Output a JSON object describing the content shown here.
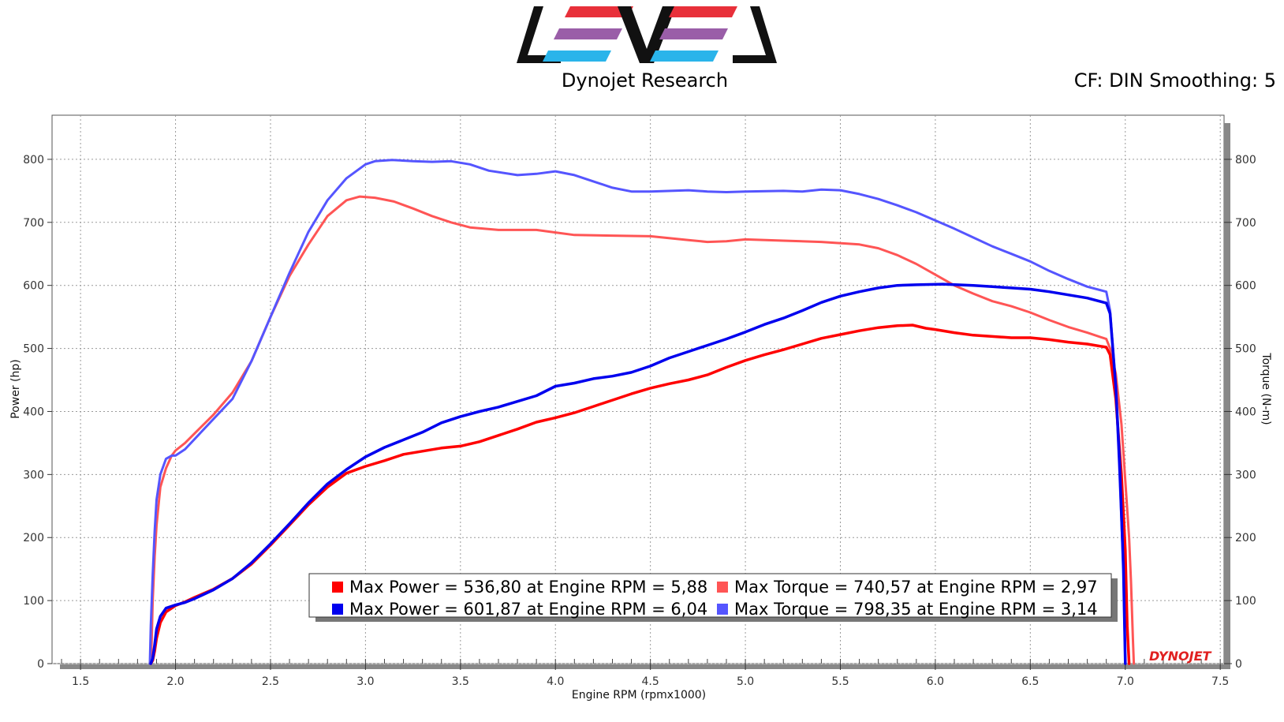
{
  "header": {
    "subtitle": "Dynojet Research",
    "settings": "CF: DIN Smoothing: 5",
    "logo_text": "LEVEL",
    "logo_colors": {
      "dark": "#111111",
      "red": "#e8303a",
      "purple": "#9a5ea8",
      "cyan": "#2ab4ea"
    }
  },
  "chart_data": {
    "type": "line",
    "xlabel": "Engine RPM (rpmx1000)",
    "ylabel_left": "Power (hp)",
    "ylabel_right": "Torque (N-m)",
    "xlim": [
      1.35,
      7.52
    ],
    "ylim": [
      0,
      870
    ],
    "x_ticks": [
      "1.5",
      "2.0",
      "2.5",
      "3.0",
      "3.5",
      "4.0",
      "4.5",
      "5.0",
      "5.5",
      "6.0",
      "6.5",
      "7.0",
      "7.5"
    ],
    "y_ticks_left": [
      "0",
      "100",
      "200",
      "300",
      "400",
      "500",
      "600",
      "700",
      "800"
    ],
    "y_ticks_right": [
      "0",
      "100",
      "200",
      "300",
      "400",
      "500",
      "600",
      "700",
      "800"
    ],
    "grid": true,
    "brand": "DYNOJET",
    "series": [
      {
        "name": "Max Power = 536,80 at Engine RPM = 5,88",
        "color": "#ff0000",
        "width": 3.5,
        "points": [
          [
            1.87,
            0
          ],
          [
            1.88,
            5
          ],
          [
            1.89,
            20
          ],
          [
            1.9,
            40
          ],
          [
            1.92,
            65
          ],
          [
            1.95,
            82
          ],
          [
            2.0,
            92
          ],
          [
            2.05,
            98
          ],
          [
            2.1,
            105
          ],
          [
            2.2,
            118
          ],
          [
            2.3,
            135
          ],
          [
            2.4,
            158
          ],
          [
            2.5,
            188
          ],
          [
            2.6,
            220
          ],
          [
            2.7,
            252
          ],
          [
            2.8,
            280
          ],
          [
            2.9,
            302
          ],
          [
            3.0,
            313
          ],
          [
            3.1,
            322
          ],
          [
            3.2,
            332
          ],
          [
            3.3,
            337
          ],
          [
            3.4,
            342
          ],
          [
            3.5,
            345
          ],
          [
            3.6,
            352
          ],
          [
            3.7,
            362
          ],
          [
            3.8,
            372
          ],
          [
            3.9,
            383
          ],
          [
            4.0,
            390
          ],
          [
            4.1,
            398
          ],
          [
            4.2,
            408
          ],
          [
            4.3,
            418
          ],
          [
            4.4,
            428
          ],
          [
            4.5,
            437
          ],
          [
            4.6,
            444
          ],
          [
            4.7,
            450
          ],
          [
            4.8,
            458
          ],
          [
            4.9,
            470
          ],
          [
            5.0,
            481
          ],
          [
            5.1,
            490
          ],
          [
            5.2,
            498
          ],
          [
            5.3,
            507
          ],
          [
            5.4,
            516
          ],
          [
            5.5,
            522
          ],
          [
            5.6,
            528
          ],
          [
            5.7,
            533
          ],
          [
            5.8,
            536
          ],
          [
            5.88,
            537
          ],
          [
            5.95,
            532
          ],
          [
            6.0,
            530
          ],
          [
            6.1,
            525
          ],
          [
            6.2,
            521
          ],
          [
            6.3,
            519
          ],
          [
            6.4,
            517
          ],
          [
            6.5,
            517
          ],
          [
            6.6,
            514
          ],
          [
            6.7,
            510
          ],
          [
            6.8,
            507
          ],
          [
            6.9,
            502
          ],
          [
            6.92,
            490
          ],
          [
            6.95,
            420
          ],
          [
            6.98,
            300
          ],
          [
            7.0,
            180
          ],
          [
            7.01,
            60
          ],
          [
            7.02,
            0
          ]
        ]
      },
      {
        "name": "Max Power = 601,87 at Engine RPM = 6,04",
        "color": "#0000ee",
        "width": 3.5,
        "points": [
          [
            1.87,
            0
          ],
          [
            1.88,
            8
          ],
          [
            1.89,
            30
          ],
          [
            1.9,
            55
          ],
          [
            1.92,
            75
          ],
          [
            1.95,
            88
          ],
          [
            2.0,
            93
          ],
          [
            2.05,
            97
          ],
          [
            2.1,
            103
          ],
          [
            2.2,
            117
          ],
          [
            2.3,
            135
          ],
          [
            2.4,
            160
          ],
          [
            2.5,
            190
          ],
          [
            2.6,
            222
          ],
          [
            2.7,
            255
          ],
          [
            2.8,
            285
          ],
          [
            2.9,
            308
          ],
          [
            3.0,
            328
          ],
          [
            3.1,
            343
          ],
          [
            3.2,
            355
          ],
          [
            3.3,
            367
          ],
          [
            3.4,
            382
          ],
          [
            3.5,
            392
          ],
          [
            3.6,
            400
          ],
          [
            3.7,
            407
          ],
          [
            3.8,
            416
          ],
          [
            3.9,
            425
          ],
          [
            4.0,
            440
          ],
          [
            4.1,
            445
          ],
          [
            4.2,
            452
          ],
          [
            4.3,
            456
          ],
          [
            4.4,
            462
          ],
          [
            4.5,
            472
          ],
          [
            4.6,
            485
          ],
          [
            4.7,
            495
          ],
          [
            4.8,
            505
          ],
          [
            4.9,
            515
          ],
          [
            5.0,
            526
          ],
          [
            5.1,
            538
          ],
          [
            5.2,
            548
          ],
          [
            5.3,
            560
          ],
          [
            5.4,
            573
          ],
          [
            5.5,
            583
          ],
          [
            5.6,
            590
          ],
          [
            5.7,
            596
          ],
          [
            5.8,
            600
          ],
          [
            5.9,
            601
          ],
          [
            6.04,
            602
          ],
          [
            6.2,
            600
          ],
          [
            6.3,
            598
          ],
          [
            6.4,
            596
          ],
          [
            6.5,
            594
          ],
          [
            6.6,
            590
          ],
          [
            6.7,
            585
          ],
          [
            6.8,
            580
          ],
          [
            6.9,
            572
          ],
          [
            6.92,
            555
          ],
          [
            6.95,
            440
          ],
          [
            6.97,
            320
          ],
          [
            6.99,
            150
          ],
          [
            7.0,
            0
          ]
        ]
      },
      {
        "name": "Max Torque = 740,57 at Engine RPM = 2,97",
        "color": "#ff5555",
        "width": 3,
        "points": [
          [
            1.87,
            0
          ],
          [
            1.875,
            40
          ],
          [
            1.88,
            100
          ],
          [
            1.89,
            170
          ],
          [
            1.9,
            220
          ],
          [
            1.92,
            280
          ],
          [
            1.95,
            310
          ],
          [
            1.98,
            330
          ],
          [
            2.0,
            338
          ],
          [
            2.05,
            350
          ],
          [
            2.1,
            365
          ],
          [
            2.2,
            395
          ],
          [
            2.3,
            430
          ],
          [
            2.4,
            480
          ],
          [
            2.5,
            550
          ],
          [
            2.6,
            615
          ],
          [
            2.7,
            665
          ],
          [
            2.8,
            710
          ],
          [
            2.9,
            735
          ],
          [
            2.97,
            741
          ],
          [
            3.05,
            739
          ],
          [
            3.15,
            733
          ],
          [
            3.25,
            722
          ],
          [
            3.35,
            710
          ],
          [
            3.45,
            700
          ],
          [
            3.55,
            692
          ],
          [
            3.7,
            688
          ],
          [
            3.9,
            688
          ],
          [
            4.0,
            684
          ],
          [
            4.1,
            680
          ],
          [
            4.3,
            679
          ],
          [
            4.5,
            678
          ],
          [
            4.7,
            672
          ],
          [
            4.8,
            669
          ],
          [
            4.9,
            670
          ],
          [
            5.0,
            673
          ],
          [
            5.2,
            671
          ],
          [
            5.4,
            669
          ],
          [
            5.6,
            665
          ],
          [
            5.7,
            659
          ],
          [
            5.8,
            648
          ],
          [
            5.9,
            634
          ],
          [
            6.0,
            617
          ],
          [
            6.1,
            600
          ],
          [
            6.2,
            587
          ],
          [
            6.3,
            575
          ],
          [
            6.4,
            567
          ],
          [
            6.5,
            557
          ],
          [
            6.6,
            545
          ],
          [
            6.7,
            534
          ],
          [
            6.8,
            525
          ],
          [
            6.9,
            515
          ],
          [
            6.92,
            500
          ],
          [
            6.95,
            460
          ],
          [
            6.98,
            380
          ],
          [
            7.0,
            290
          ],
          [
            7.02,
            200
          ],
          [
            7.03,
            130
          ],
          [
            7.04,
            40
          ],
          [
            7.045,
            0
          ]
        ]
      },
      {
        "name": "Max Torque = 798,35 at Engine RPM = 3,14",
        "color": "#5555ff",
        "width": 3,
        "points": [
          [
            1.865,
            0
          ],
          [
            1.87,
            60
          ],
          [
            1.88,
            140
          ],
          [
            1.89,
            210
          ],
          [
            1.9,
            260
          ],
          [
            1.92,
            300
          ],
          [
            1.95,
            325
          ],
          [
            1.98,
            330
          ],
          [
            2.0,
            330
          ],
          [
            2.05,
            340
          ],
          [
            2.1,
            356
          ],
          [
            2.2,
            388
          ],
          [
            2.3,
            420
          ],
          [
            2.4,
            480
          ],
          [
            2.5,
            550
          ],
          [
            2.6,
            620
          ],
          [
            2.7,
            685
          ],
          [
            2.8,
            735
          ],
          [
            2.9,
            770
          ],
          [
            3.0,
            792
          ],
          [
            3.05,
            797
          ],
          [
            3.14,
            799
          ],
          [
            3.25,
            797
          ],
          [
            3.35,
            796
          ],
          [
            3.45,
            797
          ],
          [
            3.55,
            792
          ],
          [
            3.65,
            782
          ],
          [
            3.8,
            775
          ],
          [
            3.9,
            777
          ],
          [
            4.0,
            781
          ],
          [
            4.1,
            775
          ],
          [
            4.2,
            765
          ],
          [
            4.3,
            755
          ],
          [
            4.4,
            749
          ],
          [
            4.5,
            749
          ],
          [
            4.7,
            751
          ],
          [
            4.8,
            749
          ],
          [
            4.9,
            748
          ],
          [
            5.0,
            749
          ],
          [
            5.2,
            750
          ],
          [
            5.3,
            749
          ],
          [
            5.4,
            752
          ],
          [
            5.5,
            751
          ],
          [
            5.6,
            745
          ],
          [
            5.7,
            737
          ],
          [
            5.8,
            727
          ],
          [
            5.9,
            716
          ],
          [
            6.0,
            703
          ],
          [
            6.1,
            690
          ],
          [
            6.2,
            676
          ],
          [
            6.3,
            662
          ],
          [
            6.4,
            650
          ],
          [
            6.5,
            638
          ],
          [
            6.6,
            623
          ],
          [
            6.7,
            610
          ],
          [
            6.8,
            598
          ],
          [
            6.9,
            590
          ],
          [
            6.92,
            560
          ],
          [
            6.95,
            440
          ],
          [
            6.97,
            300
          ],
          [
            6.99,
            150
          ],
          [
            7.0,
            0
          ]
        ]
      }
    ]
  }
}
